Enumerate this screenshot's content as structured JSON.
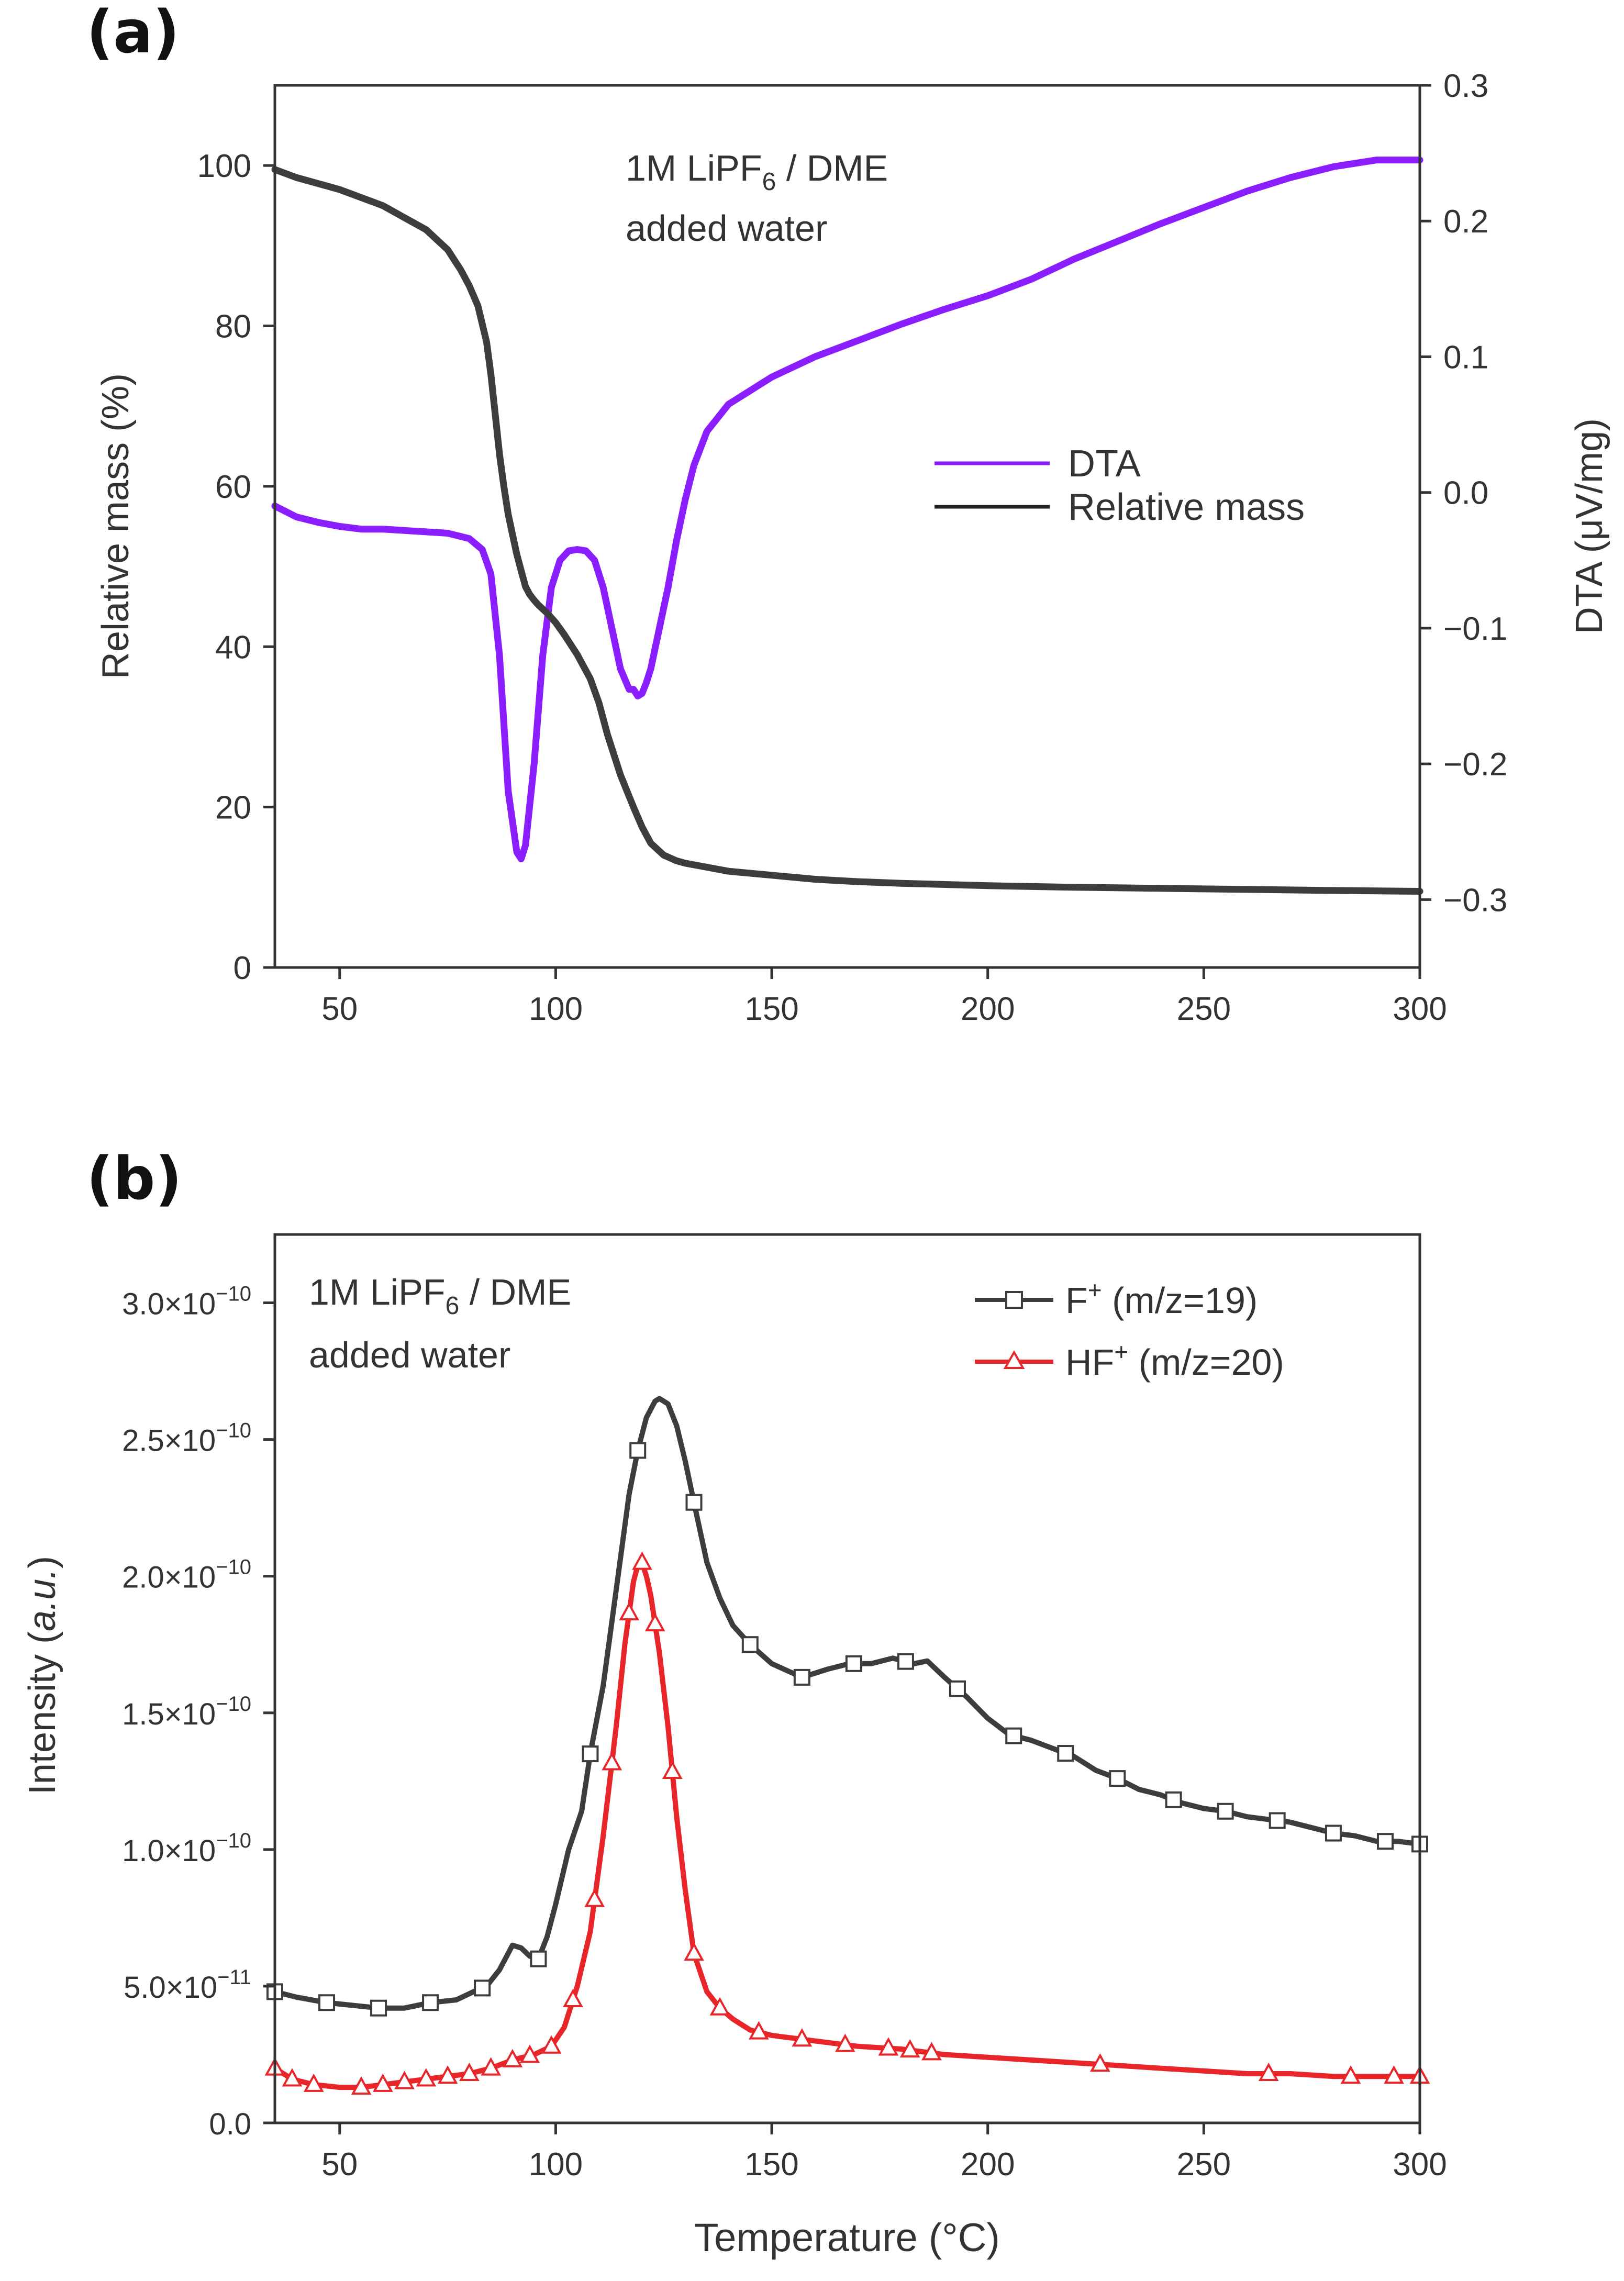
{
  "chart_data": [
    {
      "panel_label": "(a)",
      "type": "line",
      "annotation_lines": [
        {
          "base": "1M LiPF",
          "sub": "6",
          "rest": " / DME"
        },
        {
          "base": "added water",
          "sub": "",
          "rest": ""
        }
      ],
      "xlabel": "",
      "xlim": [
        35,
        300
      ],
      "xticks": [
        "50",
        "100",
        "150",
        "200",
        "250",
        "300"
      ],
      "ylabel_left": "Relative mass (%)",
      "ylim_left": [
        0,
        110
      ],
      "yticks_left": [
        "0",
        "20",
        "40",
        "60",
        "80",
        "100"
      ],
      "ylabel_right": "DTA (μV/mg)",
      "ylim_right": [
        -0.35,
        0.3
      ],
      "yticks_right": [
        "−0.3",
        "−0.2",
        "−0.1",
        "0.0",
        "0.1",
        "0.2",
        "0.3"
      ],
      "legend_position": "center-right",
      "series": [
        {
          "name": "DTA",
          "axis": "right",
          "color": "#8B1EFF",
          "x": [
            35,
            40,
            45,
            50,
            55,
            60,
            65,
            70,
            75,
            80,
            83,
            85,
            87,
            89,
            91,
            92,
            93,
            95,
            97,
            99,
            101,
            103,
            105,
            107,
            109,
            111,
            113,
            115,
            117,
            118,
            119,
            120,
            121,
            122,
            124,
            126,
            128,
            130,
            132,
            135,
            140,
            150,
            160,
            170,
            180,
            190,
            200,
            210,
            220,
            230,
            240,
            250,
            260,
            270,
            280,
            290,
            300
          ],
          "y": [
            -0.01,
            -0.018,
            -0.022,
            -0.025,
            -0.027,
            -0.027,
            -0.028,
            -0.029,
            -0.03,
            -0.034,
            -0.042,
            -0.06,
            -0.12,
            -0.22,
            -0.265,
            -0.27,
            -0.26,
            -0.2,
            -0.12,
            -0.07,
            -0.05,
            -0.043,
            -0.042,
            -0.043,
            -0.05,
            -0.07,
            -0.1,
            -0.13,
            -0.145,
            -0.145,
            -0.15,
            -0.148,
            -0.14,
            -0.13,
            -0.1,
            -0.07,
            -0.035,
            -0.005,
            0.02,
            0.045,
            0.065,
            0.085,
            0.1,
            0.112,
            0.124,
            0.135,
            0.145,
            0.157,
            0.172,
            0.185,
            0.198,
            0.21,
            0.222,
            0.232,
            0.24,
            0.245,
            0.245
          ]
        },
        {
          "name": "Relative mass",
          "axis": "left",
          "color": "#3d3d3d",
          "x": [
            35,
            40,
            50,
            60,
            65,
            70,
            75,
            78,
            80,
            82,
            84,
            85,
            86,
            87,
            88,
            89,
            90,
            91,
            92,
            93,
            94,
            95,
            96,
            97,
            98,
            100,
            102,
            105,
            108,
            110,
            112,
            115,
            118,
            120,
            122,
            125,
            128,
            130,
            135,
            140,
            150,
            160,
            170,
            180,
            200,
            220,
            250,
            280,
            300
          ],
          "y": [
            99.5,
            98.5,
            97,
            95,
            93.5,
            92,
            89.5,
            87,
            85,
            82.5,
            78,
            74,
            69,
            64,
            60,
            56.5,
            54,
            51.5,
            49.5,
            47.5,
            46.5,
            45.8,
            45.2,
            44.7,
            44.2,
            43,
            41.5,
            39,
            36,
            33,
            29,
            24,
            20,
            17.5,
            15.5,
            14,
            13.3,
            13,
            12.5,
            12,
            11.5,
            11,
            10.7,
            10.5,
            10.2,
            10,
            9.8,
            9.6,
            9.5
          ]
        }
      ]
    },
    {
      "panel_label": "(b)",
      "type": "line",
      "annotation_lines": [
        {
          "base": "1M LiPF",
          "sub": "6",
          "rest": " / DME"
        },
        {
          "base": "added water",
          "sub": "",
          "rest": ""
        }
      ],
      "xlabel": "Temperature (°C)",
      "xlim": [
        35,
        300
      ],
      "xticks": [
        "50",
        "100",
        "150",
        "200",
        "250",
        "300"
      ],
      "ylabel": "Intensity (a.u.)",
      "ylim": [
        0,
        3.25e-10
      ],
      "yticks": [
        {
          "value": 0,
          "mantissa": "0.0",
          "exponent": ""
        },
        {
          "value": 5e-11,
          "mantissa": "5.0×10",
          "exponent": "−11"
        },
        {
          "value": 1e-10,
          "mantissa": "1.0×10",
          "exponent": "−10"
        },
        {
          "value": 1.5e-10,
          "mantissa": "1.5×10",
          "exponent": "−10"
        },
        {
          "value": 2e-10,
          "mantissa": "2.0×10",
          "exponent": "−10"
        },
        {
          "value": 2.5e-10,
          "mantissa": "2.5×10",
          "exponent": "−10"
        },
        {
          "value": 3e-10,
          "mantissa": "3.0×10",
          "exponent": "−10"
        }
      ],
      "legend_position": "top-right",
      "series": [
        {
          "name": "F⁺ (m/z=19)",
          "legend_base": "F",
          "legend_sup": "+",
          "legend_rest": " (m/z=19)",
          "marker": "square",
          "color": "#3d3d3d",
          "x": [
            35,
            40,
            47,
            53,
            59,
            65,
            71,
            77,
            81,
            84,
            87,
            90,
            92,
            94,
            96,
            98,
            100,
            103,
            106,
            108,
            111,
            114,
            117,
            119,
            121,
            123,
            124,
            126,
            128,
            130,
            132,
            135,
            138,
            141,
            145,
            150,
            157,
            163,
            168,
            173,
            178,
            183,
            186,
            190,
            195,
            200,
            205,
            210,
            215,
            220,
            225,
            230,
            235,
            240,
            245,
            250,
            255,
            260,
            265,
            270,
            275,
            280,
            285,
            290,
            295,
            300
          ],
          "y": [
            4.8e-11,
            4.6e-11,
            4.4e-11,
            4.3e-11,
            4.2e-11,
            4.2e-11,
            4.4e-11,
            4.5e-11,
            4.8e-11,
            5e-11,
            5.6e-11,
            6.5e-11,
            6.4e-11,
            6.1e-11,
            6e-11,
            6.8e-11,
            8e-11,
            1e-10,
            1.14e-10,
            1.35e-10,
            1.6e-10,
            1.95e-10,
            2.3e-10,
            2.46e-10,
            2.58e-10,
            2.64e-10,
            2.65e-10,
            2.63e-10,
            2.55e-10,
            2.42e-10,
            2.27e-10,
            2.05e-10,
            1.92e-10,
            1.82e-10,
            1.75e-10,
            1.68e-10,
            1.63e-10,
            1.66e-10,
            1.68e-10,
            1.68e-10,
            1.7e-10,
            1.68e-10,
            1.69e-10,
            1.63e-10,
            1.56e-10,
            1.48e-10,
            1.42e-10,
            1.4e-10,
            1.37e-10,
            1.34e-10,
            1.29e-10,
            1.26e-10,
            1.22e-10,
            1.2e-10,
            1.17e-10,
            1.15e-10,
            1.14e-10,
            1.12e-10,
            1.11e-10,
            1.1e-10,
            1.08e-10,
            1.06e-10,
            1.05e-10,
            1.03e-10,
            1.03e-10,
            1.02e-10
          ],
          "marker_x": [
            35,
            47,
            59,
            71,
            83,
            96,
            108,
            119,
            132,
            145,
            157,
            169,
            181,
            193,
            206,
            218,
            230,
            243,
            255,
            267,
            280,
            292,
            300
          ]
        },
        {
          "name": "HF⁺ (m/z=20)",
          "legend_base": "HF",
          "legend_sup": "+",
          "legend_rest": " (m/z=20)",
          "marker": "triangle",
          "color": "#e8262a",
          "x": [
            35,
            39,
            44,
            50,
            55,
            60,
            65,
            70,
            75,
            80,
            85,
            90,
            95,
            99,
            102,
            105,
            108,
            111,
            114,
            116,
            118,
            119,
            120,
            121,
            122,
            124,
            126,
            128,
            130,
            132,
            135,
            138,
            141,
            145,
            150,
            160,
            170,
            180,
            190,
            200,
            210,
            220,
            230,
            240,
            250,
            260,
            270,
            280,
            290,
            300
          ],
          "y": [
            2e-11,
            1.6e-11,
            1.4e-11,
            1.3e-11,
            1.3e-11,
            1.4e-11,
            1.5e-11,
            1.6e-11,
            1.7e-11,
            1.8e-11,
            2e-11,
            2.3e-11,
            2.5e-11,
            2.8e-11,
            3.5e-11,
            5e-11,
            7e-11,
            1.05e-10,
            1.45e-10,
            1.75e-10,
            1.98e-10,
            2.04e-10,
            2.05e-10,
            2e-10,
            1.93e-10,
            1.72e-10,
            1.45e-10,
            1.12e-10,
            8.5e-11,
            6.2e-11,
            4.8e-11,
            4.2e-11,
            3.8e-11,
            3.4e-11,
            3.2e-11,
            3e-11,
            2.8e-11,
            2.7e-11,
            2.5e-11,
            2.4e-11,
            2.3e-11,
            2.2e-11,
            2.1e-11,
            2e-11,
            1.9e-11,
            1.8e-11,
            1.8e-11,
            1.7e-11,
            1.7e-11,
            1.7e-11
          ],
          "marker_x": [
            35,
            39,
            44,
            55,
            60,
            65,
            70,
            75,
            80,
            85,
            90,
            94,
            99,
            104,
            109,
            113,
            117,
            120,
            123,
            127,
            132,
            138,
            147,
            157,
            167,
            177,
            182,
            187,
            226,
            265,
            284,
            294,
            300
          ]
        }
      ]
    }
  ]
}
